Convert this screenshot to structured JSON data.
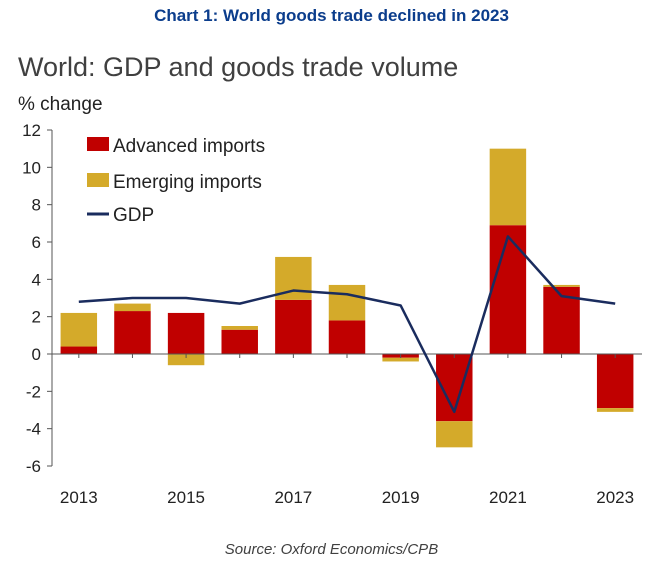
{
  "chart_heading": "Chart 1: World goods trade declined in 2023",
  "source_note": "Source: Oxford Economics/CPB",
  "colors": {
    "advanced": "#c00000",
    "emerging": "#d4aa2a",
    "gdp": "#1a2c5e",
    "axis": "#555555"
  },
  "chart_data": {
    "type": "bar",
    "title": "World: GDP and goods trade volume",
    "ylabel": "% change",
    "xlabel": "",
    "ylim": [
      -6,
      12
    ],
    "yticks": [
      -6,
      -4,
      -2,
      0,
      2,
      4,
      6,
      8,
      10,
      12
    ],
    "categories": [
      "2013",
      "2014",
      "2015",
      "2016",
      "2017",
      "2018",
      "2019",
      "2020",
      "2021",
      "2022",
      "2023"
    ],
    "x_tick_labels": [
      "2013",
      "2015",
      "2017",
      "2019",
      "2021",
      "2023"
    ],
    "legend_position": "top-left",
    "grid": false,
    "series": [
      {
        "name": "Advanced imports",
        "type": "bar",
        "values": [
          0.4,
          2.3,
          2.2,
          1.3,
          2.9,
          1.8,
          -0.2,
          -3.6,
          6.9,
          3.6,
          -2.9
        ]
      },
      {
        "name": "Emerging imports",
        "type": "bar",
        "values": [
          1.8,
          0.4,
          -0.6,
          0.2,
          2.3,
          1.9,
          -0.2,
          -1.4,
          4.1,
          0.1,
          -0.2
        ]
      },
      {
        "name": "GDP",
        "type": "line",
        "values": [
          2.8,
          3.0,
          3.0,
          2.7,
          3.4,
          3.2,
          2.6,
          -3.1,
          6.3,
          3.1,
          2.7
        ]
      }
    ]
  }
}
